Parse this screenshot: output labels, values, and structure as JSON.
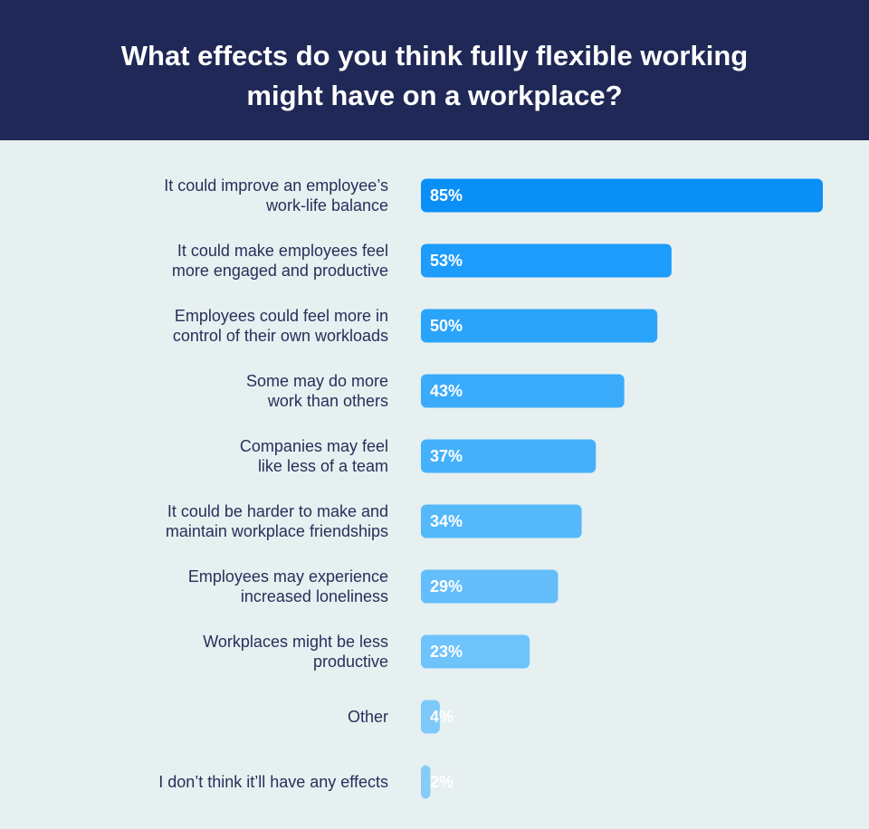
{
  "header": {
    "title": "What effects do you think fully flexible working\nmight have on a workplace?"
  },
  "chart_data": {
    "type": "bar",
    "orientation": "horizontal",
    "title": "What effects do you think fully flexible working might have on a workplace?",
    "categories": [
      [
        "It could improve an employee’s",
        "work-life balance"
      ],
      [
        "It could make employees feel",
        "more engaged and productive"
      ],
      [
        "Employees could feel more in",
        "control of their own workloads"
      ],
      [
        "Some may do more",
        "work than others"
      ],
      [
        "Companies may feel",
        "like less of a team"
      ],
      [
        "It could be harder to make and",
        "maintain workplace friendships"
      ],
      [
        "Employees may experience",
        "increased loneliness"
      ],
      [
        "Workplaces might be less",
        "productive"
      ],
      [
        "Other"
      ],
      [
        "I don’t think it’ll have any effects"
      ]
    ],
    "values": [
      85,
      53,
      50,
      43,
      37,
      34,
      29,
      23,
      4,
      2
    ],
    "value_labels": [
      "85%",
      "53%",
      "50%",
      "43%",
      "37%",
      "34%",
      "29%",
      "23%",
      "4%",
      "2%"
    ],
    "bar_colors": [
      "#0a8ff7",
      "#1e9cfb",
      "#2aa3fb",
      "#3aabfb",
      "#45b1fb",
      "#54b8fb",
      "#63befb",
      "#6fc3fb",
      "#7dc9fa",
      "#85ccf9"
    ],
    "xlim": [
      0,
      85
    ],
    "grid": false,
    "legend": "none"
  }
}
